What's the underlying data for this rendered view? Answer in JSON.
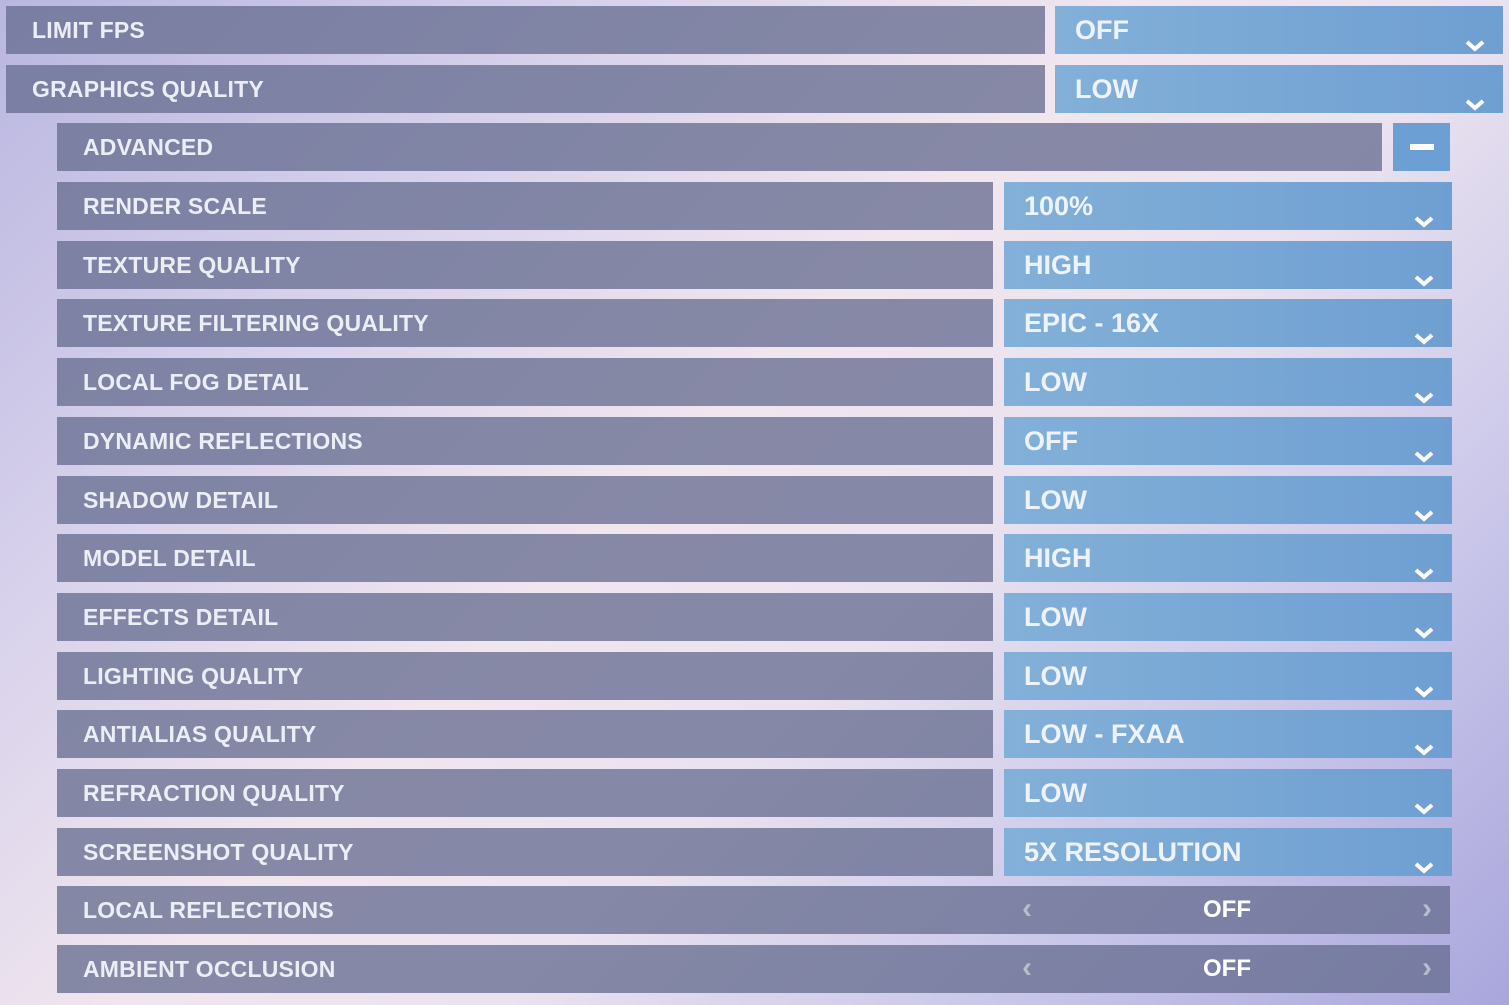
{
  "settings": [
    {
      "label": "LIMIT FPS",
      "value": "OFF",
      "kind": "top"
    },
    {
      "label": "GRAPHICS QUALITY",
      "value": "LOW",
      "kind": "top"
    },
    {
      "label": "ADVANCED",
      "kind": "advanced",
      "toggle_icon": "minus-icon"
    },
    {
      "label": "RENDER SCALE",
      "value": "100%",
      "kind": "sub"
    },
    {
      "label": "TEXTURE QUALITY",
      "value": "HIGH",
      "kind": "sub"
    },
    {
      "label": "TEXTURE FILTERING QUALITY",
      "value": "EPIC - 16X",
      "kind": "sub"
    },
    {
      "label": "LOCAL FOG DETAIL",
      "value": "LOW",
      "kind": "sub"
    },
    {
      "label": "DYNAMIC REFLECTIONS",
      "value": "OFF",
      "kind": "sub"
    },
    {
      "label": "SHADOW DETAIL",
      "value": "LOW",
      "kind": "sub"
    },
    {
      "label": "MODEL DETAIL",
      "value": "HIGH",
      "kind": "sub"
    },
    {
      "label": "EFFECTS DETAIL",
      "value": "LOW",
      "kind": "sub"
    },
    {
      "label": "LIGHTING QUALITY",
      "value": "LOW",
      "kind": "sub"
    },
    {
      "label": "ANTIALIAS QUALITY",
      "value": "LOW - FXAA",
      "kind": "sub"
    },
    {
      "label": "REFRACTION QUALITY",
      "value": "LOW",
      "kind": "sub"
    },
    {
      "label": "SCREENSHOT QUALITY",
      "value": "5X RESOLUTION",
      "kind": "sub"
    },
    {
      "label": "LOCAL REFLECTIONS",
      "value": "OFF",
      "kind": "step"
    },
    {
      "label": "AMBIENT OCCLUSION",
      "value": "OFF",
      "kind": "step"
    }
  ],
  "colors": {
    "dropdown": "#7aaad6",
    "label_bar": "#6e7494",
    "toggle_button": "#6c9fd3"
  }
}
